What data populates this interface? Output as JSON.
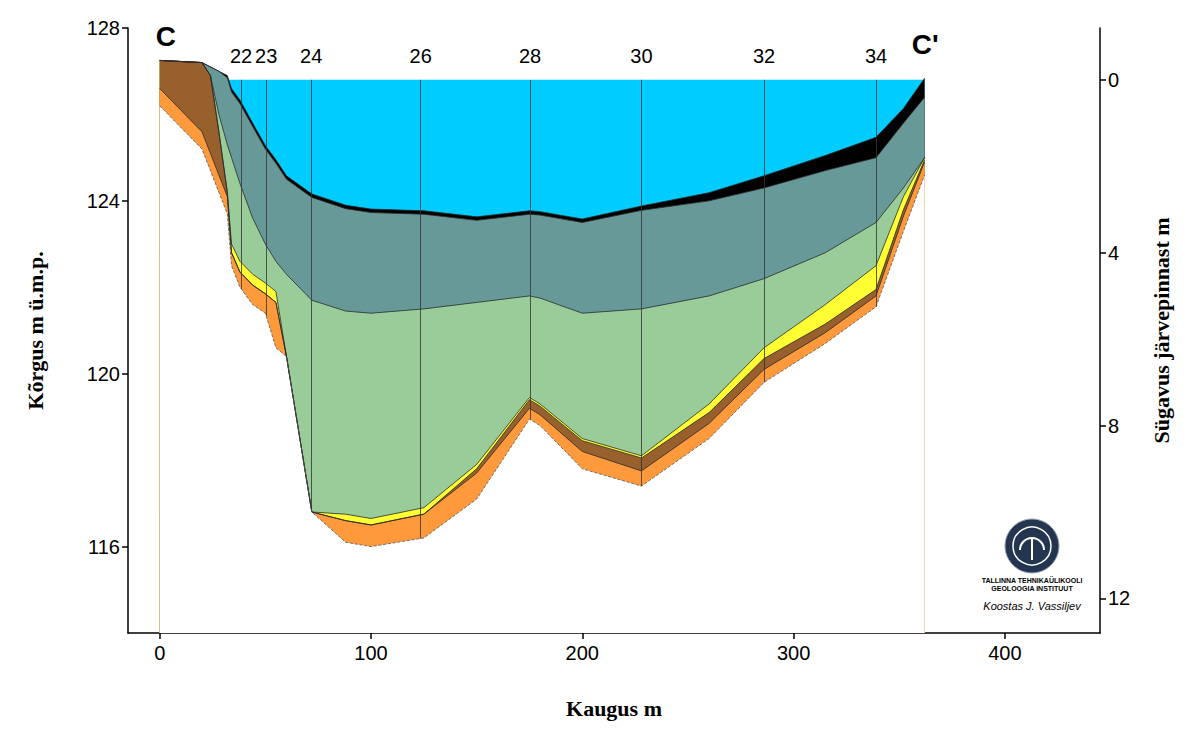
{
  "chart_data": {
    "type": "area",
    "x_label": "Kaugus m",
    "y_label": "Kõrgus m ü.m.p.",
    "y2_label": "Sügavus järvepinnast m",
    "x": [
      0,
      20,
      24,
      28,
      32,
      34,
      38,
      44,
      50,
      55,
      60,
      72,
      88,
      100,
      125,
      150,
      175,
      180,
      200,
      228,
      260,
      286,
      315,
      339,
      352,
      362
    ],
    "xlim": [
      -15,
      445
    ],
    "xticks": [
      0,
      100,
      200,
      300,
      400
    ],
    "ylim": [
      114,
      128
    ],
    "yticks": [
      116,
      120,
      124,
      128
    ],
    "y2lim": [
      12.8,
      -1.2
    ],
    "y2ticks": [
      0,
      4,
      8,
      12
    ],
    "grid": false,
    "series": [
      {
        "color": "#00ccff",
        "line_style": "solid",
        "values": [
          null,
          null,
          null,
          null,
          126.8,
          126.8,
          126.8,
          126.8,
          126.8,
          126.8,
          126.8,
          126.8,
          126.8,
          126.8,
          126.8,
          126.8,
          126.8,
          126.8,
          126.8,
          126.8,
          126.8,
          126.8,
          126.8,
          126.8,
          126.8,
          126.8
        ]
      },
      {
        "color": "#000000",
        "line_style": "solid",
        "values": [
          127.25,
          127.2,
          127.1,
          127.0,
          126.9,
          126.6,
          126.33,
          125.8,
          125.28,
          124.95,
          124.58,
          124.16,
          123.9,
          123.81,
          123.77,
          123.63,
          123.77,
          123.75,
          123.58,
          123.88,
          124.19,
          124.58,
          125.05,
          125.47,
          126.14,
          126.84
        ]
      },
      {
        "color": "#669998",
        "line_style": "solid",
        "values": [
          127.25,
          127.2,
          127.1,
          127.0,
          126.85,
          126.52,
          126.25,
          125.72,
          125.2,
          124.87,
          124.5,
          124.08,
          123.82,
          123.73,
          123.69,
          123.55,
          123.69,
          123.67,
          123.5,
          123.78,
          124.0,
          124.3,
          124.7,
          125.0,
          125.8,
          126.4
        ]
      },
      {
        "color": "#9acc9a",
        "line_style": "solid",
        "values": [
          127.25,
          127.2,
          126.9,
          126.0,
          125.3,
          125.0,
          124.4,
          123.6,
          123.0,
          122.6,
          122.3,
          121.7,
          121.45,
          121.4,
          121.5,
          121.65,
          121.8,
          121.75,
          121.4,
          121.5,
          121.8,
          122.2,
          122.8,
          123.5,
          124.3,
          125.0
        ]
      },
      {
        "color": "#ffff33",
        "line_style": "solid",
        "values": [
          127.25,
          127.2,
          126.9,
          125.6,
          124.2,
          123.0,
          122.6,
          122.3,
          122.1,
          121.9,
          120.4,
          116.8,
          116.75,
          116.65,
          116.9,
          117.9,
          119.45,
          119.3,
          118.5,
          118.1,
          119.3,
          120.6,
          121.6,
          122.5,
          124.1,
          125.0
        ]
      },
      {
        "color": "#98602d",
        "line_style": "solid",
        "values": [
          127.25,
          127.2,
          126.9,
          125.6,
          124.2,
          122.8,
          122.35,
          122.05,
          121.85,
          121.65,
          120.4,
          116.8,
          116.6,
          116.5,
          116.75,
          117.8,
          119.4,
          119.25,
          118.45,
          118.05,
          119.1,
          120.35,
          121.15,
          121.95,
          123.8,
          124.95
        ]
      },
      {
        "color": "#ff9a3c",
        "line_style": "solid",
        "values": [
          126.6,
          125.6,
          125.1,
          124.6,
          124.1,
          122.8,
          122.35,
          122.05,
          121.85,
          121.65,
          120.4,
          116.8,
          116.6,
          116.5,
          116.75,
          117.7,
          119.2,
          119.05,
          118.2,
          117.75,
          118.85,
          120.1,
          120.95,
          121.8,
          123.65,
          124.9
        ]
      },
      {
        "color": "#ffffff",
        "line_style": "dashed",
        "values": [
          126.2,
          125.2,
          124.7,
          124.2,
          123.7,
          122.5,
          122.0,
          121.6,
          121.4,
          120.6,
          120.4,
          116.8,
          116.1,
          116.0,
          116.2,
          117.1,
          118.95,
          118.8,
          117.8,
          117.4,
          118.5,
          119.8,
          120.7,
          121.55,
          123.3,
          124.6
        ]
      }
    ],
    "cores": {
      "labels": [
        22,
        23,
        24,
        26,
        28,
        30,
        32,
        34
      ],
      "x": [
        38.5,
        50.4,
        71.7,
        123.5,
        175.3,
        228,
        286,
        339
      ]
    },
    "section_labels": [
      "C",
      "C'"
    ],
    "logo_text": [
      "TALLINNA TEHNIKAÜLIKOOLI",
      "GEOLOOGIA INSTITUUT"
    ],
    "credit": "Koostas J. Vassiljev"
  }
}
